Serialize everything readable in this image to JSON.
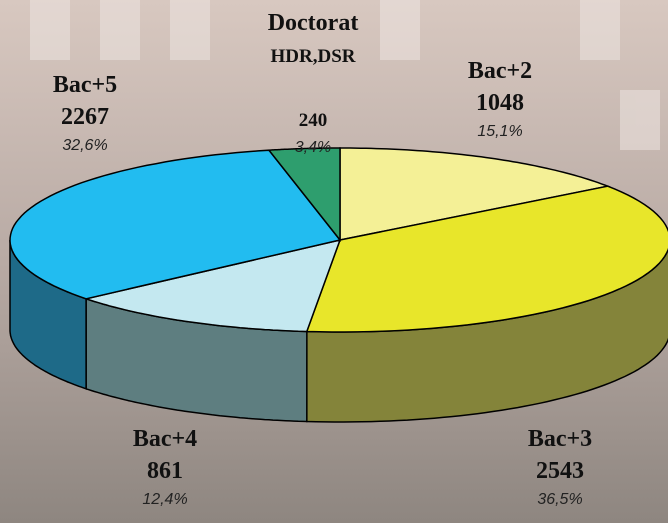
{
  "chart_data": {
    "type": "pie3d",
    "categories": [
      [
        "Bac+2"
      ],
      [
        "Bac+3"
      ],
      [
        "Bac+4"
      ],
      [
        "Bac+5"
      ],
      [
        "Doctorat",
        "HDR,DSR"
      ]
    ],
    "values": [
      1048,
      2543,
      861,
      2267,
      240
    ],
    "percentages": [
      {
        "value": 15.1,
        "label": "15,1%"
      },
      {
        "value": 36.5,
        "label": "36,5%"
      },
      {
        "value": 12.4,
        "label": "12,4%"
      },
      {
        "value": 32.6,
        "label": "32,6%"
      },
      {
        "value": 3.4,
        "label": "3,4%"
      }
    ],
    "colors": [
      "#f4f096",
      "#e8e62a",
      "#c4e8f0",
      "#22bcf0",
      "#2e9e6e"
    ],
    "side_colors": [
      "#8c8a3c",
      "#84843a",
      "#5e7e80",
      "#1e6a88",
      "#1c6040"
    ]
  }
}
